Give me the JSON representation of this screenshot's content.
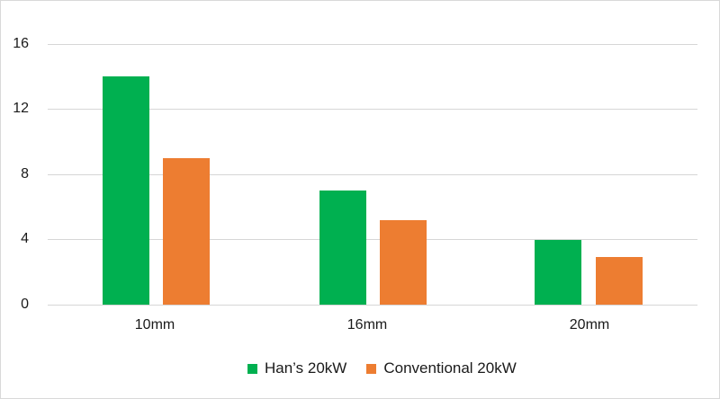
{
  "chart_data": {
    "type": "bar",
    "title": "",
    "xlabel": "",
    "ylabel": "",
    "categories": [
      "10mm",
      "16mm",
      "20mm"
    ],
    "series": [
      {
        "name": "Han’s 20kW",
        "color": "#00b050",
        "values": [
          14,
          7,
          4
        ]
      },
      {
        "name": "Conventional 20kW",
        "color": "#ed7d31",
        "values": [
          9,
          5.2,
          2.9
        ]
      }
    ],
    "ylim": [
      0,
      16
    ],
    "yticks": [
      0,
      4,
      8,
      12,
      16
    ],
    "grid": true,
    "legend_position": "bottom"
  },
  "axis": {
    "yticks": [
      "16",
      "12",
      "8",
      "4",
      "0"
    ],
    "xticks": [
      "10mm",
      "16mm",
      "20mm"
    ]
  },
  "legend": {
    "items": [
      {
        "label": "Han’s 20kW",
        "color": "#00b050"
      },
      {
        "label": "Conventional 20kW",
        "color": "#ed7d31"
      }
    ]
  }
}
